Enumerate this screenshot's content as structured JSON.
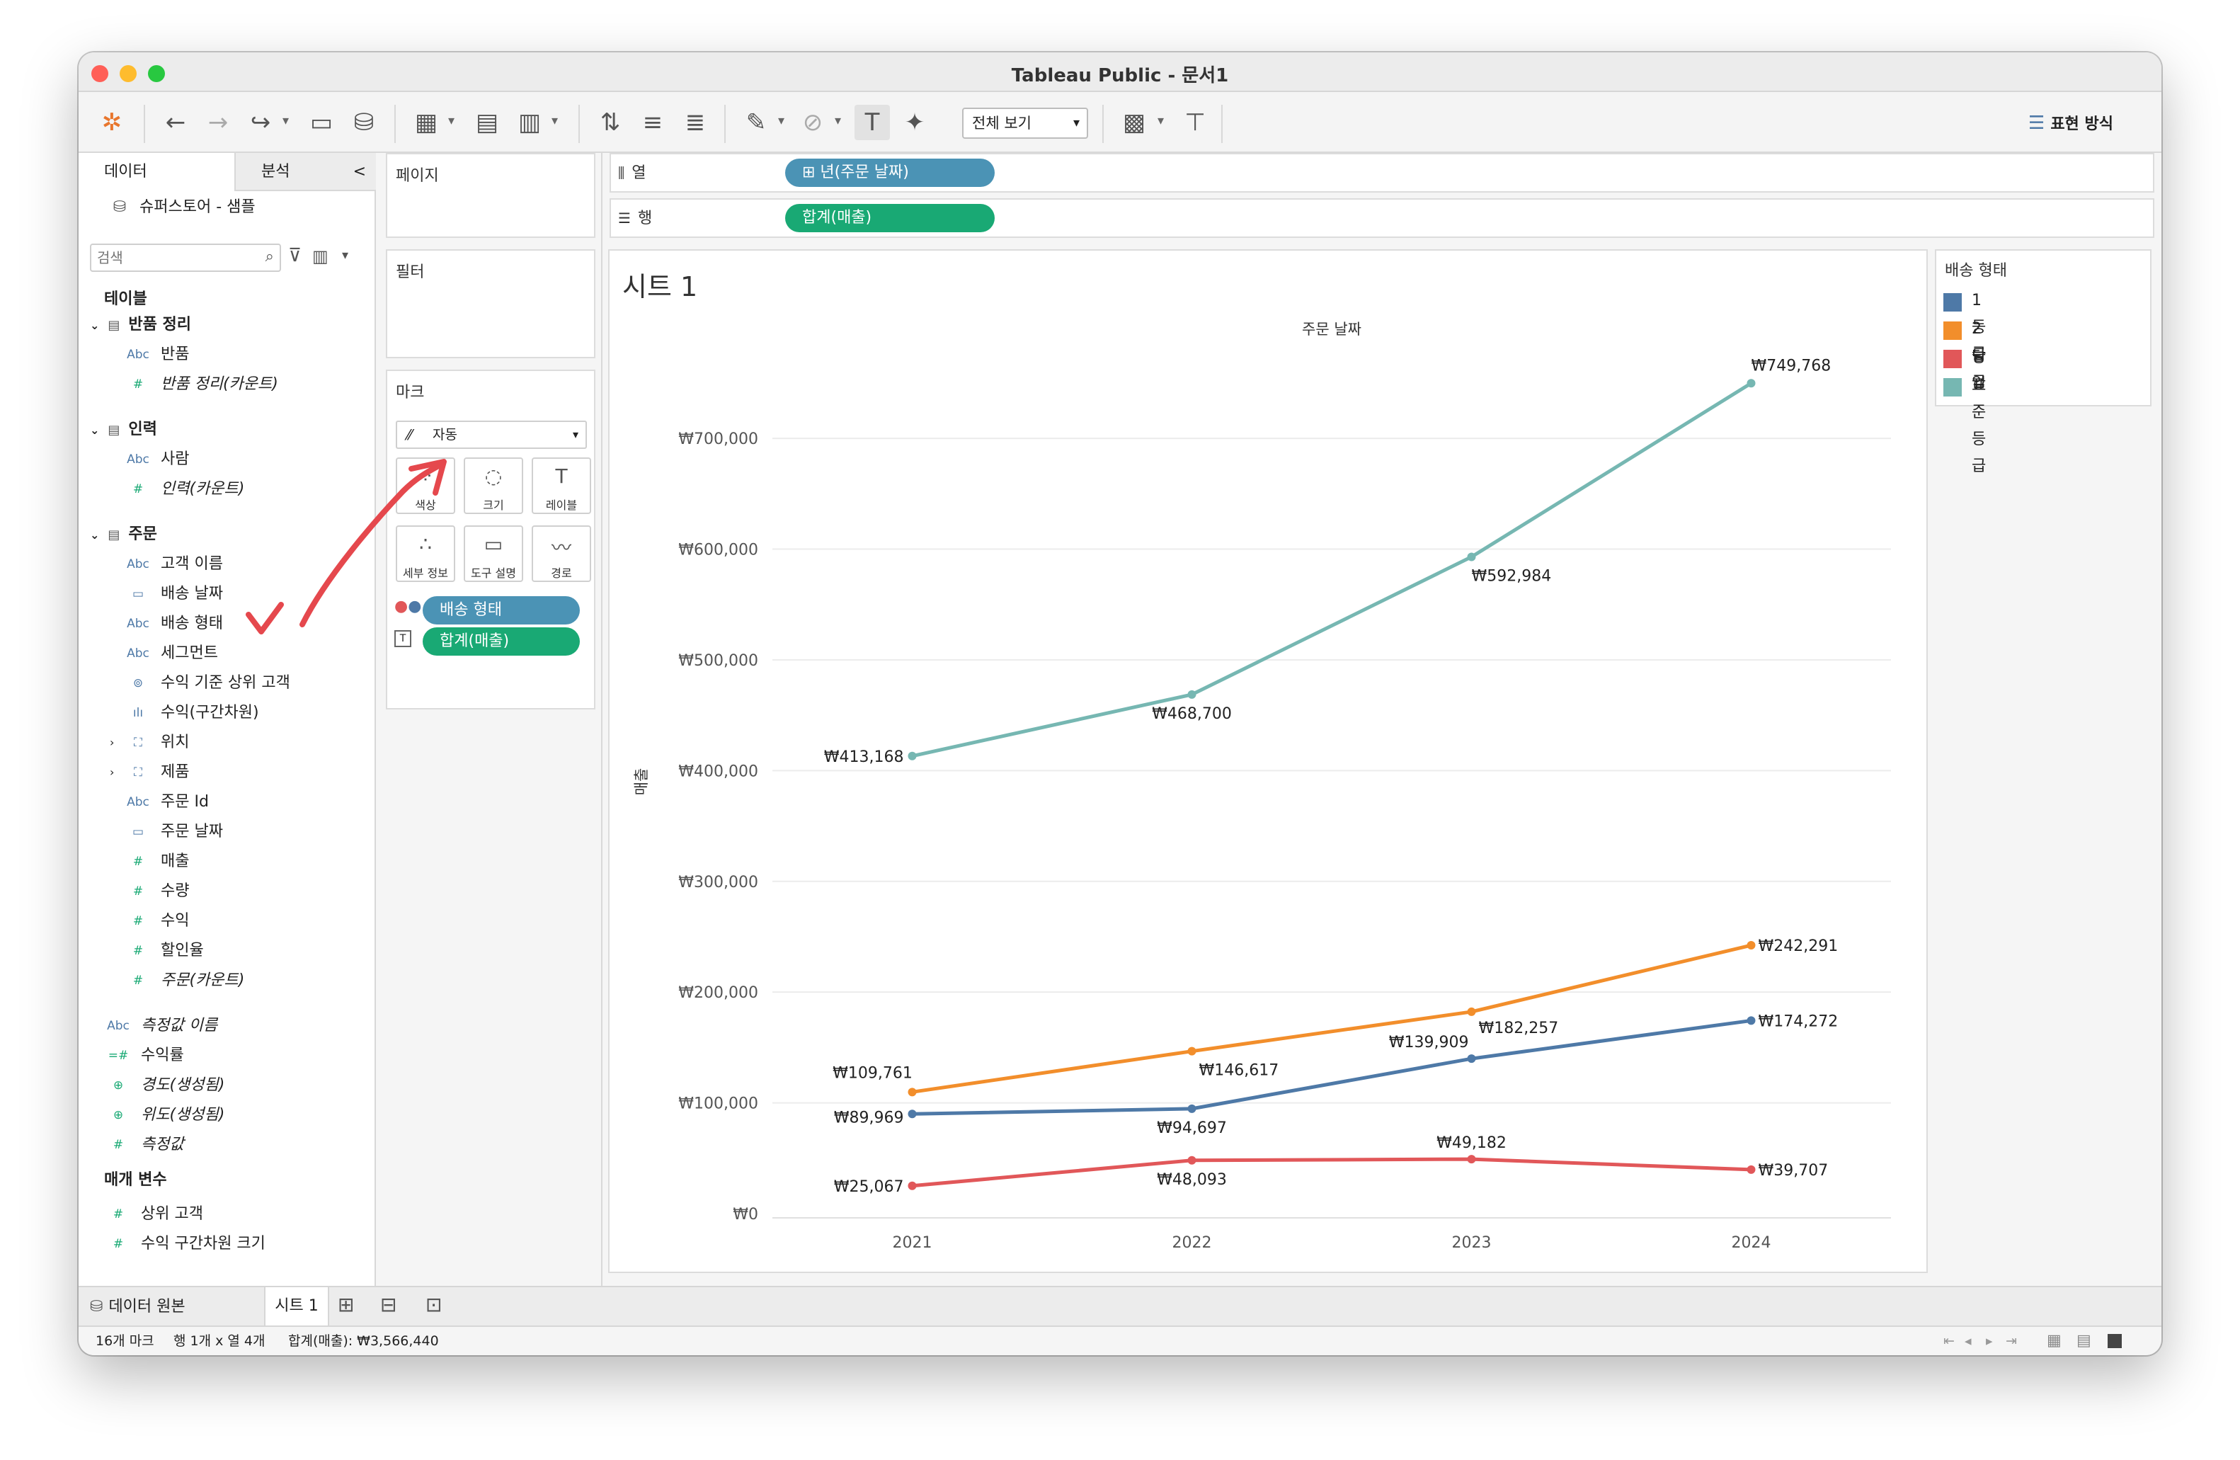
{
  "window": {
    "title": "Tableau Public - 문서1"
  },
  "toolbar": {
    "view_select": "전체 보기",
    "show_me": "표현 방식"
  },
  "left_pane": {
    "tab_data": "데이터",
    "tab_analysis": "분석",
    "collapse": "<",
    "datasource": "슈퍼스토어 - 샘플",
    "search_placeholder": "검색",
    "tables_heading": "테이블",
    "groups": [
      {
        "name": "반품 정리",
        "fields": [
          {
            "icon": "Abc",
            "name": "반품"
          },
          {
            "icon": "#",
            "name": "반품 정리(카운트)"
          }
        ]
      },
      {
        "name": "인력",
        "fields": [
          {
            "icon": "Abc",
            "name": "사람"
          },
          {
            "icon": "#",
            "name": "인력(카운트)"
          }
        ]
      },
      {
        "name": "주문",
        "fields": [
          {
            "icon": "Abc",
            "name": "고객 이름"
          },
          {
            "icon": "cal",
            "name": "배송 날짜"
          },
          {
            "icon": "Abc",
            "name": "배송 형태"
          },
          {
            "icon": "Abc",
            "name": "세그먼트"
          },
          {
            "icon": "set",
            "name": "수익 기준 상위 고객"
          },
          {
            "icon": "bin",
            "name": "수익(구간차원)"
          },
          {
            "icon": "hier",
            "name": "위치"
          },
          {
            "icon": "hier",
            "name": "제품"
          },
          {
            "icon": "Abc",
            "name": "주문 Id"
          },
          {
            "icon": "cal",
            "name": "주문 날짜"
          },
          {
            "icon": "#",
            "name": "매출"
          },
          {
            "icon": "#",
            "name": "수량"
          },
          {
            "icon": "#",
            "name": "수익"
          },
          {
            "icon": "#",
            "name": "할인율"
          },
          {
            "icon": "#",
            "name": "주문(카운트)"
          }
        ]
      }
    ],
    "extra_fields": [
      {
        "icon": "Abc",
        "name": "측정값 이름"
      },
      {
        "icon": "=#",
        "name": "수익률"
      },
      {
        "icon": "globe",
        "name": "경도(생성됨)"
      },
      {
        "icon": "globe",
        "name": "위도(생성됨)"
      },
      {
        "icon": "#",
        "name": "측정값"
      }
    ],
    "params_heading": "매개 변수",
    "params": [
      {
        "icon": "#",
        "name": "상위 고객"
      },
      {
        "icon": "#",
        "name": "수익 구간차원 크기"
      }
    ]
  },
  "cards": {
    "pages": "페이지",
    "filters": "필터",
    "marks": "마크",
    "mark_type": "자동",
    "mark_buttons": [
      "색상",
      "크기",
      "레이블",
      "세부 정보",
      "도구 설명",
      "경로"
    ],
    "mark_pills": [
      "배송 형태",
      "합계(매출)"
    ]
  },
  "shelves": {
    "columns_label": "열",
    "columns_pill": "⊞ 년(주문 날짜)",
    "rows_label": "행",
    "rows_pill": "합계(매출)"
  },
  "legend": {
    "title": "배송 형태",
    "items": [
      {
        "name": "1등급",
        "color": "#4e79a7"
      },
      {
        "name": "2등급",
        "color": "#f28e2b"
      },
      {
        "name": "당일",
        "color": "#e15759"
      },
      {
        "name": "표준 등급",
        "color": "#76b7b2"
      }
    ]
  },
  "sheet": {
    "title": "시트 1"
  },
  "chart_data": {
    "type": "line",
    "title": "",
    "xlabel": "주문 날짜",
    "ylabel": "매출",
    "categories": [
      "2021",
      "2022",
      "2023",
      "2024"
    ],
    "ylim": [
      0,
      780000
    ],
    "yticks": [
      "₩0",
      "₩100,000",
      "₩200,000",
      "₩300,000",
      "₩400,000",
      "₩500,000",
      "₩600,000",
      "₩700,000"
    ],
    "grid": true,
    "series": [
      {
        "name": "1등급",
        "color": "#4e79a7",
        "values": [
          89969,
          94697,
          139909,
          174272
        ],
        "labels": [
          "₩89,969",
          "₩94,697",
          "₩139,909",
          "₩174,272"
        ]
      },
      {
        "name": "2등급",
        "color": "#f28e2b",
        "values": [
          109761,
          146617,
          182257,
          242291
        ],
        "labels": [
          "₩109,761",
          "₩146,617",
          "₩182,257",
          "₩242,291"
        ]
      },
      {
        "name": "당일",
        "color": "#e15759",
        "values": [
          25067,
          48093,
          49182,
          39707
        ],
        "labels": [
          "₩25,067",
          "₩48,093",
          "₩49,182",
          "₩39,707"
        ]
      },
      {
        "name": "표준 등급",
        "color": "#76b7b2",
        "values": [
          413168,
          468700,
          592984,
          749768
        ],
        "labels": [
          "₩413,168",
          "₩468,700",
          "₩592,984",
          "₩749,768"
        ]
      }
    ]
  },
  "bottom_tabs": {
    "datasource_tab": "데이터 원본",
    "sheet_tab": "시트 1"
  },
  "status": {
    "marks": "16개 마크",
    "rowscols": "행 1개 x 열 4개",
    "sum": "합계(매출): ₩3,566,440"
  }
}
